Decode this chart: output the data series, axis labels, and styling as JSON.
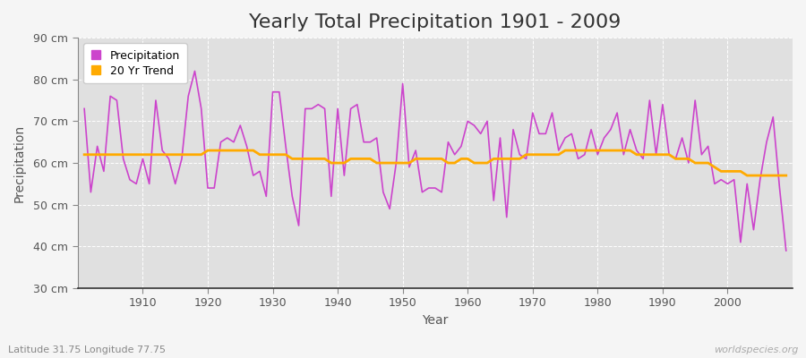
{
  "title": "Yearly Total Precipitation 1901 - 2009",
  "xlabel": "Year",
  "ylabel": "Precipitation",
  "lat_lon_label": "Latitude 31.75 Longitude 77.75",
  "watermark": "worldspecies.org",
  "years": [
    1901,
    1902,
    1903,
    1904,
    1905,
    1906,
    1907,
    1908,
    1909,
    1910,
    1911,
    1912,
    1913,
    1914,
    1915,
    1916,
    1917,
    1918,
    1919,
    1920,
    1921,
    1922,
    1923,
    1924,
    1925,
    1926,
    1927,
    1928,
    1929,
    1930,
    1931,
    1932,
    1933,
    1934,
    1935,
    1936,
    1937,
    1938,
    1939,
    1940,
    1941,
    1942,
    1943,
    1944,
    1945,
    1946,
    1947,
    1948,
    1949,
    1950,
    1951,
    1952,
    1953,
    1954,
    1955,
    1956,
    1957,
    1958,
    1959,
    1960,
    1961,
    1962,
    1963,
    1964,
    1965,
    1966,
    1967,
    1968,
    1969,
    1970,
    1971,
    1972,
    1973,
    1974,
    1975,
    1976,
    1977,
    1978,
    1979,
    1980,
    1981,
    1982,
    1983,
    1984,
    1985,
    1986,
    1987,
    1988,
    1989,
    1990,
    1991,
    1992,
    1993,
    1994,
    1995,
    1996,
    1997,
    1998,
    1999,
    2000,
    2001,
    2002,
    2003,
    2004,
    2005,
    2006,
    2007,
    2008,
    2009
  ],
  "precipitation": [
    73,
    53,
    64,
    58,
    76,
    75,
    61,
    56,
    55,
    61,
    55,
    75,
    63,
    61,
    55,
    61,
    76,
    82,
    73,
    54,
    54,
    65,
    66,
    65,
    69,
    64,
    57,
    58,
    52,
    77,
    77,
    64,
    52,
    45,
    73,
    73,
    74,
    73,
    52,
    73,
    57,
    73,
    74,
    65,
    65,
    66,
    53,
    49,
    60,
    79,
    59,
    63,
    53,
    54,
    54,
    53,
    65,
    62,
    64,
    70,
    69,
    67,
    70,
    51,
    66,
    47,
    68,
    62,
    61,
    72,
    67,
    67,
    72,
    63,
    66,
    67,
    61,
    62,
    68,
    62,
    66,
    68,
    72,
    62,
    68,
    63,
    61,
    75,
    62,
    74,
    62,
    61,
    66,
    60,
    75,
    62,
    64,
    55,
    56,
    55,
    56,
    41,
    55,
    44,
    56,
    65,
    71,
    54,
    39
  ],
  "trend": [
    62,
    62,
    62,
    62,
    62,
    62,
    62,
    62,
    62,
    62,
    62,
    62,
    62,
    62,
    62,
    62,
    62,
    62,
    62,
    63,
    63,
    63,
    63,
    63,
    63,
    63,
    63,
    62,
    62,
    62,
    62,
    62,
    61,
    61,
    61,
    61,
    61,
    61,
    60,
    60,
    60,
    61,
    61,
    61,
    61,
    60,
    60,
    60,
    60,
    60,
    60,
    61,
    61,
    61,
    61,
    61,
    60,
    60,
    61,
    61,
    60,
    60,
    60,
    61,
    61,
    61,
    61,
    61,
    62,
    62,
    62,
    62,
    62,
    62,
    63,
    63,
    63,
    63,
    63,
    63,
    63,
    63,
    63,
    63,
    63,
    62,
    62,
    62,
    62,
    62,
    62,
    61,
    61,
    61,
    60,
    60,
    60,
    59,
    58,
    58,
    58,
    58,
    57,
    57,
    57,
    57,
    57,
    57,
    57
  ],
  "precip_color": "#cc44cc",
  "trend_color": "#ffaa00",
  "fig_bg_color": "#f5f5f5",
  "plot_bg_color": "#e0e0e0",
  "grid_color": "#ffffff",
  "grid_linestyle": "--",
  "spine_color": "#888888",
  "bottom_spine_color": "#333333",
  "tick_color": "#555555",
  "title_color": "#333333",
  "label_color": "#555555",
  "watermark_color": "#aaaaaa",
  "lat_lon_color": "#888888",
  "ylim": [
    30,
    90
  ],
  "xlim_min": 1900,
  "xlim_max": 2010,
  "yticks": [
    30,
    40,
    50,
    60,
    70,
    80,
    90
  ],
  "ytick_labels": [
    "30 cm",
    "40 cm",
    "50 cm",
    "60 cm",
    "70 cm",
    "80 cm",
    "90 cm"
  ],
  "xticks": [
    1910,
    1920,
    1930,
    1940,
    1950,
    1960,
    1970,
    1980,
    1990,
    2000
  ],
  "title_fontsize": 16,
  "label_fontsize": 10,
  "tick_fontsize": 9,
  "legend_fontsize": 9,
  "precip_linewidth": 1.2,
  "trend_linewidth": 2.0
}
